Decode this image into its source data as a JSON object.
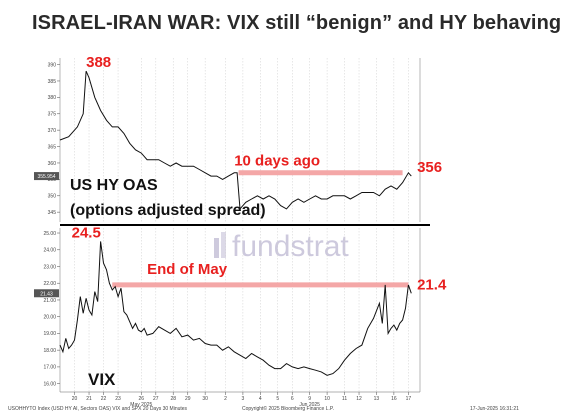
{
  "title": "ISRAEL-IRAN WAR: VIX still “benign” and HY behaving",
  "watermark": "fundstrat",
  "colors": {
    "highlight": "#f4a7a7",
    "callout": "#e8201f",
    "line": "#111111",
    "tag_bg": "#555555",
    "watermark": "#b9b3cf"
  },
  "chart_data": [
    {
      "type": "line",
      "name": "US HY OAS",
      "label_lines": [
        "US HY OAS",
        "(options adjusted spread)"
      ],
      "ylim": [
        342,
        392
      ],
      "yticks": [
        "345",
        "350",
        "355",
        "360",
        "365",
        "370",
        "375",
        "380",
        "385",
        "390"
      ],
      "last_value_tag": "355.954",
      "callouts": [
        {
          "text": "388",
          "x": 9,
          "y": 388
        },
        {
          "text": "10 days ago",
          "x": 60,
          "y": 358
        },
        {
          "text": "356",
          "x": 123,
          "y": 356
        }
      ],
      "reference_line": {
        "from_x": 61.5,
        "to_x": 118,
        "y": 357
      },
      "data": [
        [
          0,
          367
        ],
        [
          3,
          368
        ],
        [
          6,
          371
        ],
        [
          8,
          375
        ],
        [
          9,
          388
        ],
        [
          10,
          386
        ],
        [
          12,
          380
        ],
        [
          14,
          376
        ],
        [
          16,
          373
        ],
        [
          18,
          371
        ],
        [
          20,
          371
        ],
        [
          22,
          369
        ],
        [
          24,
          366
        ],
        [
          26,
          364
        ],
        [
          28,
          363
        ],
        [
          30,
          361
        ],
        [
          32,
          361
        ],
        [
          34,
          361
        ],
        [
          36,
          360
        ],
        [
          38,
          359
        ],
        [
          40,
          360
        ],
        [
          42,
          359
        ],
        [
          44,
          359
        ],
        [
          46,
          359
        ],
        [
          48,
          358
        ],
        [
          50,
          357
        ],
        [
          52,
          356
        ],
        [
          54,
          356
        ],
        [
          56,
          355
        ],
        [
          58,
          356
        ],
        [
          60,
          357
        ],
        [
          61,
          357
        ],
        [
          62,
          346
        ],
        [
          64,
          348
        ],
        [
          66,
          349
        ],
        [
          68,
          350
        ],
        [
          70,
          349
        ],
        [
          72,
          350
        ],
        [
          74,
          349
        ],
        [
          76,
          347
        ],
        [
          78,
          346
        ],
        [
          80,
          348
        ],
        [
          82,
          349
        ],
        [
          84,
          348
        ],
        [
          86,
          349
        ],
        [
          88,
          350
        ],
        [
          90,
          349
        ],
        [
          92,
          349
        ],
        [
          94,
          350
        ],
        [
          96,
          350
        ],
        [
          98,
          350
        ],
        [
          100,
          349
        ],
        [
          102,
          350
        ],
        [
          104,
          351
        ],
        [
          106,
          351
        ],
        [
          108,
          351
        ],
        [
          110,
          350
        ],
        [
          112,
          352
        ],
        [
          114,
          353
        ],
        [
          116,
          352
        ],
        [
          118,
          354
        ],
        [
          120,
          357
        ],
        [
          121,
          356
        ]
      ]
    },
    {
      "type": "line",
      "name": "VIX",
      "label_lines": [
        "VIX"
      ],
      "ylim": [
        15.5,
        25.3
      ],
      "yticks": [
        "16.00",
        "17.00",
        "18.00",
        "19.00",
        "20.00",
        "21.00",
        "22.00",
        "23.00",
        "24.00",
        "25.00"
      ],
      "last_value_tag": "21.43",
      "callouts": [
        {
          "text": "24.5",
          "x": 4,
          "y": 24.5
        },
        {
          "text": "End of May",
          "x": 30,
          "y": 22.3
        },
        {
          "text": "21.4",
          "x": 123,
          "y": 21.4
        }
      ],
      "reference_line": {
        "from_x": 18,
        "to_x": 120,
        "y": 21.9
      },
      "data": [
        [
          0,
          18.3
        ],
        [
          1,
          17.9
        ],
        [
          2,
          18.7
        ],
        [
          3,
          18.1
        ],
        [
          4,
          18.3
        ],
        [
          5,
          18.6
        ],
        [
          6,
          19.8
        ],
        [
          7,
          21.2
        ],
        [
          8,
          20.2
        ],
        [
          9,
          21.1
        ],
        [
          10,
          20.4
        ],
        [
          11,
          20.1
        ],
        [
          12,
          21.5
        ],
        [
          13,
          20.9
        ],
        [
          14,
          24.5
        ],
        [
          15,
          23.2
        ],
        [
          16,
          22.8
        ],
        [
          17,
          22.0
        ],
        [
          18,
          21.6
        ],
        [
          19,
          21.8
        ],
        [
          20,
          21.2
        ],
        [
          21,
          21.7
        ],
        [
          22,
          20.3
        ],
        [
          23,
          20.1
        ],
        [
          24,
          19.7
        ],
        [
          25,
          19.3
        ],
        [
          26,
          19.6
        ],
        [
          27,
          19.2
        ],
        [
          28,
          19.1
        ],
        [
          29,
          19.3
        ],
        [
          30,
          18.9
        ],
        [
          32,
          19.0
        ],
        [
          34,
          19.4
        ],
        [
          36,
          19.2
        ],
        [
          38,
          19.0
        ],
        [
          40,
          19.3
        ],
        [
          42,
          18.8
        ],
        [
          44,
          18.9
        ],
        [
          46,
          18.6
        ],
        [
          48,
          18.7
        ],
        [
          50,
          18.4
        ],
        [
          52,
          18.3
        ],
        [
          54,
          18.3
        ],
        [
          56,
          18.0
        ],
        [
          58,
          18.2
        ],
        [
          60,
          17.9
        ],
        [
          62,
          17.7
        ],
        [
          64,
          17.5
        ],
        [
          66,
          17.8
        ],
        [
          68,
          17.6
        ],
        [
          70,
          17.4
        ],
        [
          72,
          17.1
        ],
        [
          74,
          16.9
        ],
        [
          76,
          16.9
        ],
        [
          78,
          17.2
        ],
        [
          80,
          17.0
        ],
        [
          82,
          16.9
        ],
        [
          84,
          17.0
        ],
        [
          86,
          16.9
        ],
        [
          88,
          16.8
        ],
        [
          90,
          16.7
        ],
        [
          92,
          16.5
        ],
        [
          94,
          16.6
        ],
        [
          96,
          16.9
        ],
        [
          98,
          17.4
        ],
        [
          100,
          17.8
        ],
        [
          102,
          18.1
        ],
        [
          104,
          18.3
        ],
        [
          106,
          19.3
        ],
        [
          108,
          19.9
        ],
        [
          110,
          20.8
        ],
        [
          111,
          19.6
        ],
        [
          112,
          21.9
        ],
        [
          113,
          19.0
        ],
        [
          114,
          19.3
        ],
        [
          115,
          19.5
        ],
        [
          116,
          19.2
        ],
        [
          117,
          19.6
        ],
        [
          118,
          19.8
        ],
        [
          119,
          20.5
        ],
        [
          120,
          21.9
        ],
        [
          121,
          21.4
        ]
      ]
    }
  ],
  "x_axis": {
    "xlim": [
      0,
      124
    ],
    "ticks": [
      {
        "label": "20",
        "x": 5
      },
      {
        "label": "21",
        "x": 10
      },
      {
        "label": "22",
        "x": 15
      },
      {
        "label": "23",
        "x": 20
      },
      {
        "label": "26",
        "x": 28
      },
      {
        "label": "27",
        "x": 33
      },
      {
        "label": "28",
        "x": 39
      },
      {
        "label": "29",
        "x": 44
      },
      {
        "label": "30",
        "x": 50
      },
      {
        "label": "2",
        "x": 57
      },
      {
        "label": "3",
        "x": 63
      },
      {
        "label": "4",
        "x": 69
      },
      {
        "label": "5",
        "x": 75
      },
      {
        "label": "6",
        "x": 80
      },
      {
        "label": "9",
        "x": 86
      },
      {
        "label": "10",
        "x": 92
      },
      {
        "label": "11",
        "x": 98
      },
      {
        "label": "12",
        "x": 103
      },
      {
        "label": "13",
        "x": 109
      },
      {
        "label": "16",
        "x": 115
      },
      {
        "label": "17",
        "x": 120
      }
    ],
    "month_labels": [
      {
        "label": "May 2025",
        "x": 28
      },
      {
        "label": "Jun 2025",
        "x": 86
      }
    ]
  },
  "footer": {
    "left": "USOHHYTO Index (USD HY AI, Sectors OAS) VIX and SPX 20 Days 30 Minutes",
    "mid": "Copyright© 2025 Bloomberg Finance L.P.",
    "right": "17-Jun-2025 16:31:21"
  }
}
